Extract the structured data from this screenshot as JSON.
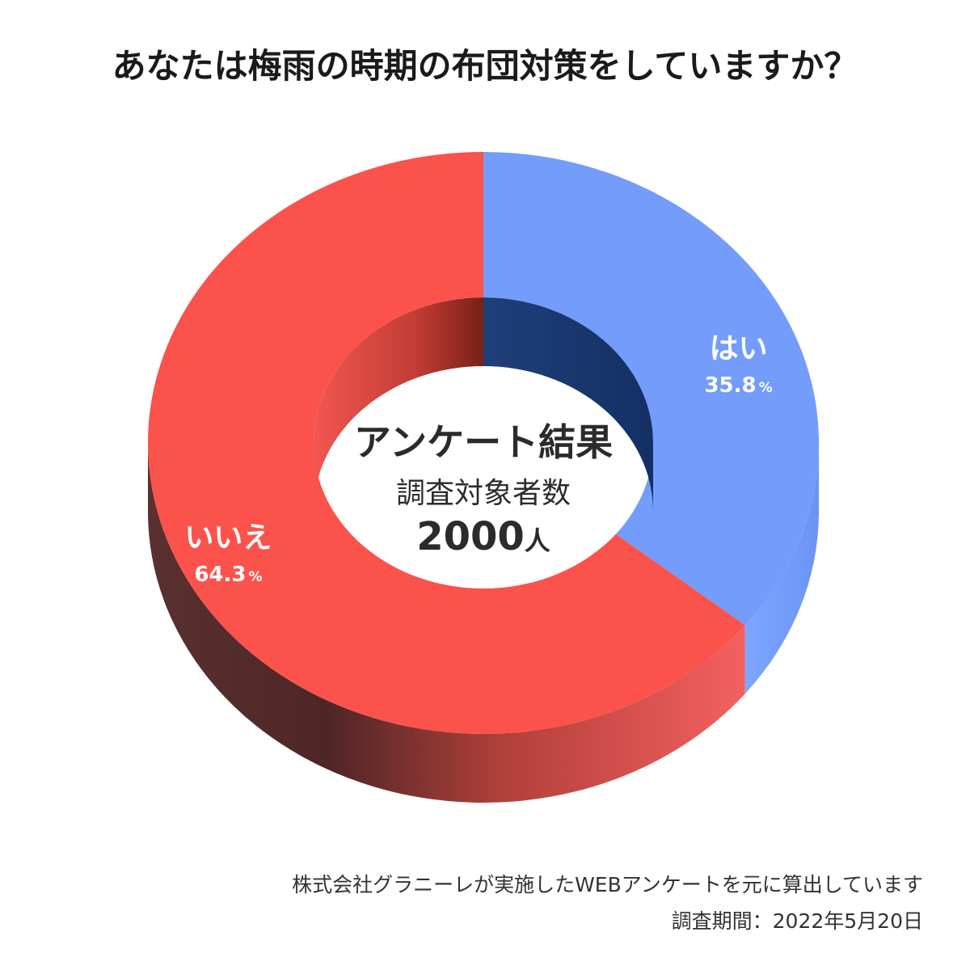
{
  "title": "あなたは梅雨の時期の布団対策をしていますか？",
  "center": {
    "heading": "アンケート結果",
    "subheading": "調査対象者数",
    "count": "2000",
    "unit": "人"
  },
  "chart_data": {
    "type": "pie",
    "title": "あなたは梅雨の時期の布団対策をしていますか？",
    "series": [
      {
        "name": "",
        "categories": [
          "はい",
          "いいえ"
        ],
        "values": [
          35.8,
          64.3
        ],
        "value_labels": [
          "35.8",
          "64.3"
        ],
        "percent_sign": "%"
      }
    ],
    "style": "3d-donut",
    "colors": {
      "はい": "#739cfb",
      "いいえ": "#fb524b"
    }
  },
  "footer": {
    "note": "株式会社グラニーレが実施したWEBアンケートを元に算出しています",
    "date": "調査期間：2022年5月20日"
  }
}
